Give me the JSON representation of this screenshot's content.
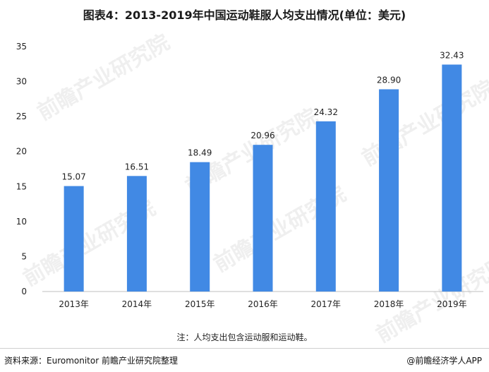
{
  "title": "图表4：2013-2019年中国运动鞋服人均支出情况(单位：美元)",
  "note": "注：人均支出包含运动服和运动鞋。",
  "source": "资料来源：Euromonitor 前瞻产业研究院整理",
  "brand": "@前瞻经济学人APP",
  "watermark": "前瞻产业研究院",
  "colors": {
    "bar": "#4189e4",
    "axis": "#bfbfbf",
    "text": "#222222"
  },
  "chart_data": {
    "type": "bar",
    "categories": [
      "2013年",
      "2014年",
      "2015年",
      "2016年",
      "2017年",
      "2018年",
      "2019年"
    ],
    "values": [
      15.07,
      16.51,
      18.49,
      20.96,
      24.32,
      28.9,
      32.43
    ],
    "value_labels": [
      "15.07",
      "16.51",
      "18.49",
      "20.96",
      "24.32",
      "28.90",
      "32.43"
    ],
    "ylim": [
      0,
      35
    ],
    "yticks": [
      0,
      5,
      10,
      15,
      20,
      25,
      30,
      35
    ],
    "grid": false,
    "legend": "none"
  }
}
